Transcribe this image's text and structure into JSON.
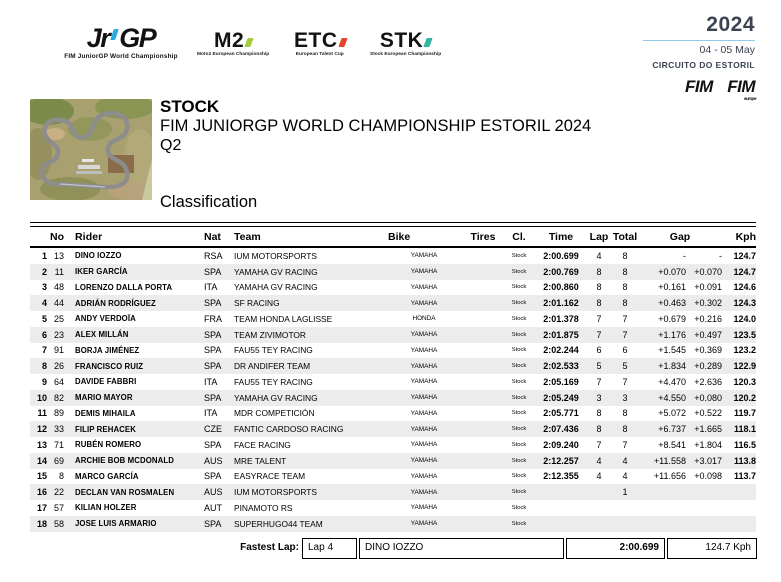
{
  "header": {
    "logos": {
      "jrgp": {
        "text_left": "Jr",
        "text_right": "GP",
        "caption": "FIM JuniorGP World Championship",
        "accent": "#29abe2"
      },
      "m2": {
        "text": "M2",
        "caption": "Moto2 European Championship",
        "accent": "#a4cd3c"
      },
      "etc": {
        "text": "ETC",
        "caption": "European Talent Cup",
        "accent": "#e8432c"
      },
      "stk": {
        "text": "STK",
        "caption": "Stock European Championship",
        "accent": "#2fb5a3"
      }
    },
    "event_info": {
      "year": "2024",
      "date": "04 - 05 May",
      "circuit": "CIRCUITO DO ESTORIL"
    },
    "fim": {
      "label": "FIM",
      "europe_label": "FIM",
      "europe_sub": "europe"
    }
  },
  "title": {
    "category": "STOCK",
    "event": "FIM JUNIORGP WORLD CHAMPIONSHIP ESTORIL 2024",
    "session": "Q2",
    "heading": "Classification"
  },
  "table": {
    "headers": {
      "no": "No",
      "rider": "Rider",
      "nat": "Nat",
      "team": "Team",
      "bike": "Bike",
      "tires": "Tires",
      "cl": "Cl.",
      "time": "Time",
      "lap": "Lap",
      "total": "Total",
      "gap": "Gap",
      "kph": "Kph"
    },
    "rows": [
      {
        "pos": "1",
        "no": "13",
        "rider": "DINO IOZZO",
        "nat": "RSA",
        "team": "IUM MOTORSPORTS",
        "bike": "YAMAHA",
        "tires": "",
        "cl": "Stock",
        "time": "2:00.699",
        "lap": "4",
        "total": "8",
        "gap1": "-",
        "gap2": "-",
        "kph": "124.7"
      },
      {
        "pos": "2",
        "no": "11",
        "rider": "IKER GARCÍA",
        "nat": "SPA",
        "team": "YAMAHA GV RACING",
        "bike": "YAMAHA",
        "tires": "",
        "cl": "Stock",
        "time": "2:00.769",
        "lap": "8",
        "total": "8",
        "gap1": "+0.070",
        "gap2": "+0.070",
        "kph": "124.7"
      },
      {
        "pos": "3",
        "no": "48",
        "rider": "LORENZO DALLA PORTA",
        "nat": "ITA",
        "team": "YAMAHA GV RACING",
        "bike": "YAMAHA",
        "tires": "",
        "cl": "Stock",
        "time": "2:00.860",
        "lap": "8",
        "total": "8",
        "gap1": "+0.161",
        "gap2": "+0.091",
        "kph": "124.6"
      },
      {
        "pos": "4",
        "no": "44",
        "rider": "ADRIÁN RODRÍGUEZ",
        "nat": "SPA",
        "team": "SF RACING",
        "bike": "YAMAHA",
        "tires": "",
        "cl": "Stock",
        "time": "2:01.162",
        "lap": "8",
        "total": "8",
        "gap1": "+0.463",
        "gap2": "+0.302",
        "kph": "124.3"
      },
      {
        "pos": "5",
        "no": "25",
        "rider": "ANDY VERDOÏA",
        "nat": "FRA",
        "team": "TEAM HONDA LAGLISSE",
        "bike": "HONDA",
        "tires": "",
        "cl": "Stock",
        "time": "2:01.378",
        "lap": "7",
        "total": "7",
        "gap1": "+0.679",
        "gap2": "+0.216",
        "kph": "124.0"
      },
      {
        "pos": "6",
        "no": "23",
        "rider": "ALEX MILLÁN",
        "nat": "SPA",
        "team": "TEAM ZIVIMOTOR",
        "bike": "YAMAHA",
        "tires": "",
        "cl": "Stock",
        "time": "2:01.875",
        "lap": "7",
        "total": "7",
        "gap1": "+1.176",
        "gap2": "+0.497",
        "kph": "123.5"
      },
      {
        "pos": "7",
        "no": "91",
        "rider": "BORJA JIMÉNEZ",
        "nat": "SPA",
        "team": "FAU55 TEY RACING",
        "bike": "YAMAHA",
        "tires": "",
        "cl": "Stock",
        "time": "2:02.244",
        "lap": "6",
        "total": "6",
        "gap1": "+1.545",
        "gap2": "+0.369",
        "kph": "123.2"
      },
      {
        "pos": "8",
        "no": "26",
        "rider": "FRANCISCO RUIZ",
        "nat": "SPA",
        "team": "DR ANDIFER TEAM",
        "bike": "YAMAHA",
        "tires": "",
        "cl": "Stock",
        "time": "2:02.533",
        "lap": "5",
        "total": "5",
        "gap1": "+1.834",
        "gap2": "+0.289",
        "kph": "122.9"
      },
      {
        "pos": "9",
        "no": "64",
        "rider": "DAVIDE FABBRI",
        "nat": "ITA",
        "team": "FAU55 TEY RACING",
        "bike": "YAMAHA",
        "tires": "",
        "cl": "Stock",
        "time": "2:05.169",
        "lap": "7",
        "total": "7",
        "gap1": "+4.470",
        "gap2": "+2.636",
        "kph": "120.3"
      },
      {
        "pos": "10",
        "no": "82",
        "rider": "MARIO MAYOR",
        "nat": "SPA",
        "team": "YAMAHA GV RACING",
        "bike": "YAMAHA",
        "tires": "",
        "cl": "Stock",
        "time": "2:05.249",
        "lap": "3",
        "total": "3",
        "gap1": "+4.550",
        "gap2": "+0.080",
        "kph": "120.2"
      },
      {
        "pos": "11",
        "no": "89",
        "rider": "DEMIS MIHAILA",
        "nat": "ITA",
        "team": "MDR COMPETICIÓN",
        "bike": "YAMAHA",
        "tires": "",
        "cl": "Stock",
        "time": "2:05.771",
        "lap": "8",
        "total": "8",
        "gap1": "+5.072",
        "gap2": "+0.522",
        "kph": "119.7"
      },
      {
        "pos": "12",
        "no": "33",
        "rider": "FILIP REHACEK",
        "nat": "CZE",
        "team": "FANTIC CARDOSO RACING",
        "bike": "YAMAHA",
        "tires": "",
        "cl": "Stock",
        "time": "2:07.436",
        "lap": "8",
        "total": "8",
        "gap1": "+6.737",
        "gap2": "+1.665",
        "kph": "118.1"
      },
      {
        "pos": "13",
        "no": "71",
        "rider": "RUBÉN ROMERO",
        "nat": "SPA",
        "team": "FACE RACING",
        "bike": "YAMAHA",
        "tires": "",
        "cl": "Stock",
        "time": "2:09.240",
        "lap": "7",
        "total": "7",
        "gap1": "+8.541",
        "gap2": "+1.804",
        "kph": "116.5"
      },
      {
        "pos": "14",
        "no": "69",
        "rider": "ARCHIE BOB MCDONALD",
        "nat": "AUS",
        "team": "MRE TALENT",
        "bike": "YAMAHA",
        "tires": "",
        "cl": "Stock",
        "time": "2:12.257",
        "lap": "4",
        "total": "4",
        "gap1": "+11.558",
        "gap2": "+3.017",
        "kph": "113.8"
      },
      {
        "pos": "15",
        "no": "8",
        "rider": "MARCO GARCÍA",
        "nat": "SPA",
        "team": "EASYRACE TEAM",
        "bike": "YAMAHA",
        "tires": "",
        "cl": "Stock",
        "time": "2:12.355",
        "lap": "4",
        "total": "4",
        "gap1": "+11.656",
        "gap2": "+0.098",
        "kph": "113.7"
      },
      {
        "pos": "16",
        "no": "22",
        "rider": "DECLAN VAN ROSMALEN",
        "nat": "AUS",
        "team": "IUM MOTORSPORTS",
        "bike": "YAMAHA",
        "tires": "",
        "cl": "Stock",
        "time": "",
        "lap": "",
        "total": "1",
        "gap1": "",
        "gap2": "",
        "kph": ""
      },
      {
        "pos": "17",
        "no": "57",
        "rider": "KILIAN HOLZER",
        "nat": "AUT",
        "team": "PINAMOTO RS",
        "bike": "YAMAHA",
        "tires": "",
        "cl": "Stock",
        "time": "",
        "lap": "",
        "total": "",
        "gap1": "",
        "gap2": "",
        "kph": ""
      },
      {
        "pos": "18",
        "no": "58",
        "rider": "JOSE LUIS ARMARIO",
        "nat": "SPA",
        "team": "SUPERHUGO44 TEAM",
        "bike": "YAMAHA",
        "tires": "",
        "cl": "Stock",
        "time": "",
        "lap": "",
        "total": "",
        "gap1": "",
        "gap2": "",
        "kph": ""
      }
    ]
  },
  "footer": {
    "label": "Fastest Lap:",
    "lap": "Lap 4",
    "rider": "DINO IOZZO",
    "time": "2:00.699",
    "speed": "124.7 Kph"
  },
  "colors": {
    "stripe": "#ececec",
    "accent_blue": "#29abe2",
    "dark_text": "#3c4352"
  }
}
